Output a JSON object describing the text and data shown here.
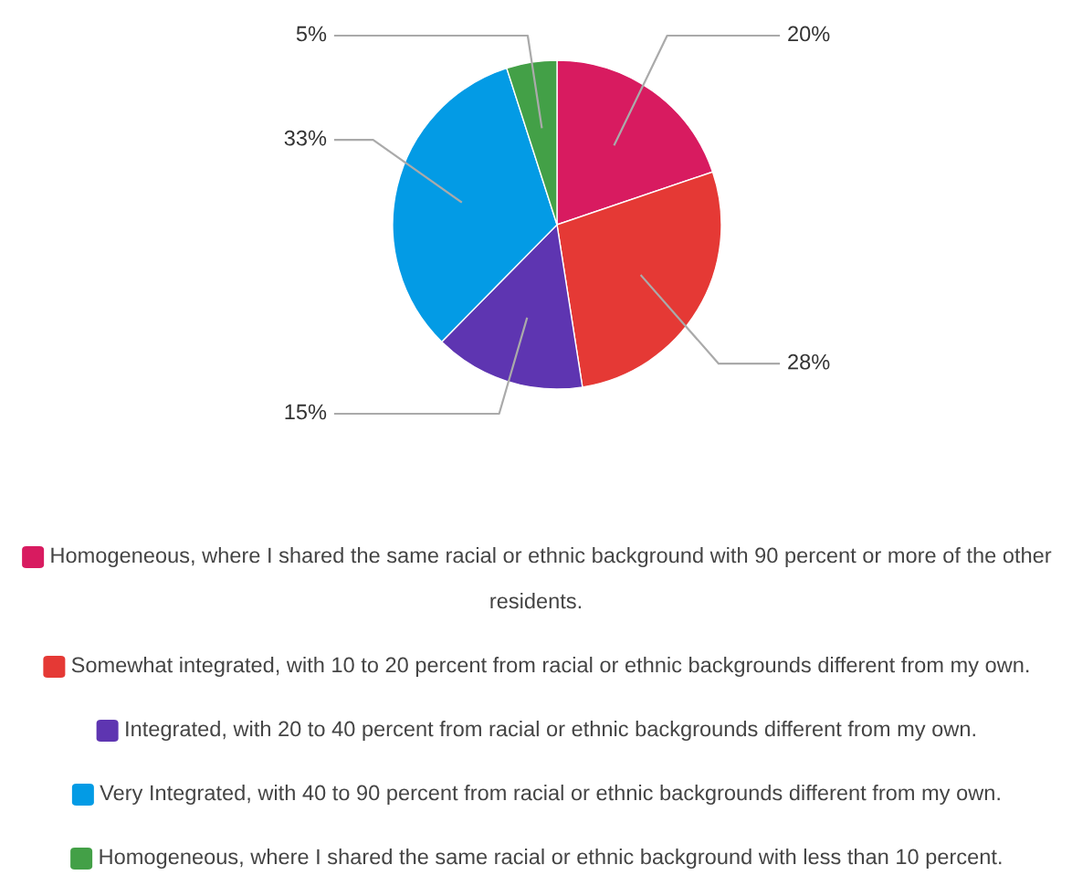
{
  "chart_data": {
    "type": "pie",
    "categories": [
      "Homogeneous, where I shared the same racial or ethnic background with 90 percent or more of the other residents.",
      "Somewhat integrated, with 10 to 20 percent from racial or ethnic backgrounds different from my own.",
      "Integrated, with 20 to 40 percent from racial or ethnic backgrounds different from my own.",
      "Very Integrated, with 40 to 90 percent from racial or ethnic backgrounds different from my own.",
      "Homogeneous, where I shared the same racial or ethnic background with less than 10 percent."
    ],
    "values": [
      20,
      28,
      15,
      33,
      5
    ],
    "value_labels": [
      "20%",
      "28%",
      "15%",
      "33%",
      "5%"
    ],
    "colors": [
      "#d81b60",
      "#e53935",
      "#5e35b1",
      "#039be5",
      "#43a047"
    ],
    "legend": "bottom"
  }
}
